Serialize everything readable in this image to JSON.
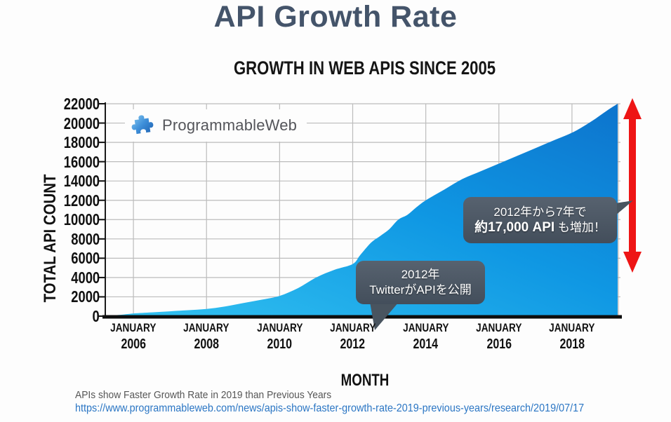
{
  "slide": {
    "title": "API Growth Rate",
    "footer_note": "APIs show Faster Growth Rate in 2019 than Previous Years",
    "footer_link": "https://www.programmableweb.com/news/apis-show-faster-growth-rate-2019-previous-years/research/2019/07/17"
  },
  "logo": {
    "text": "ProgrammableWeb",
    "icon": "puzzle-piece-icon"
  },
  "chart_data": {
    "type": "area",
    "title": "GROWTH IN WEB APIS SINCE 2005",
    "xlabel": "MONTH",
    "ylabel": "TOTAL API COUNT",
    "ylim": [
      0,
      22000
    ],
    "y_tick_step": 2000,
    "x_range": [
      2005.23,
      2019.25
    ],
    "x_tick_month": "JANUARY",
    "x_tick_years": [
      "2006",
      "2008",
      "2010",
      "2012",
      "2014",
      "2016",
      "2018"
    ],
    "grid": true,
    "legend": "none",
    "fill_gradient": [
      "#33c3f1",
      "#0f97e3",
      "#0d74cd"
    ],
    "series": [
      {
        "name": "Total API Count",
        "points": [
          [
            2005.23,
            60
          ],
          [
            2005.6,
            120
          ],
          [
            2006.0,
            280
          ],
          [
            2006.5,
            390
          ],
          [
            2007.0,
            500
          ],
          [
            2007.5,
            620
          ],
          [
            2008.0,
            750
          ],
          [
            2008.5,
            1000
          ],
          [
            2009.0,
            1350
          ],
          [
            2009.5,
            1700
          ],
          [
            2010.0,
            2100
          ],
          [
            2010.5,
            2900
          ],
          [
            2011.0,
            4000
          ],
          [
            2011.5,
            4800
          ],
          [
            2012.0,
            5400
          ],
          [
            2012.2,
            6300
          ],
          [
            2012.5,
            7600
          ],
          [
            2012.75,
            8300
          ],
          [
            2013.0,
            9000
          ],
          [
            2013.25,
            10000
          ],
          [
            2013.5,
            10500
          ],
          [
            2013.75,
            11300
          ],
          [
            2014.0,
            12000
          ],
          [
            2014.5,
            13100
          ],
          [
            2015.0,
            14200
          ],
          [
            2015.5,
            15000
          ],
          [
            2016.0,
            15800
          ],
          [
            2016.5,
            16600
          ],
          [
            2017.0,
            17400
          ],
          [
            2017.5,
            18200
          ],
          [
            2018.0,
            19000
          ],
          [
            2018.33,
            19700
          ],
          [
            2018.66,
            20500
          ],
          [
            2019.0,
            21400
          ],
          [
            2019.25,
            22000
          ]
        ]
      }
    ]
  },
  "annotations": {
    "callout_2012": {
      "line1": "2012年",
      "line2": "TwitterがAPIを公開"
    },
    "callout_growth": {
      "line1": "2012年から7年で",
      "line2_bold": "約17,000 API",
      "line2_rest": " も増加！"
    },
    "arrow_color": "#ee1515"
  }
}
